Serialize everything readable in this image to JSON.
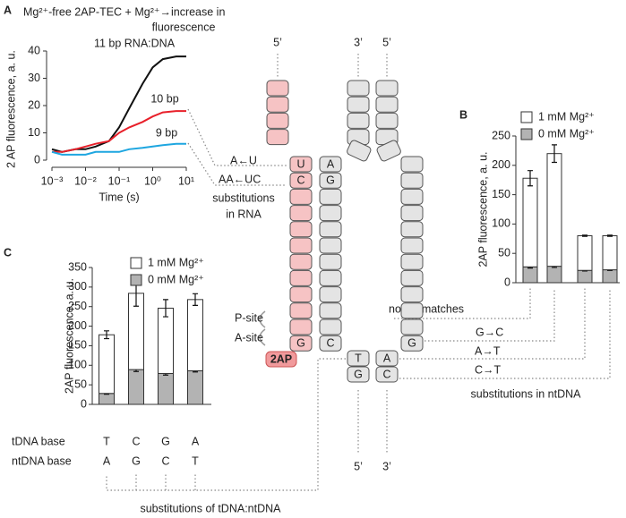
{
  "header": {
    "line1": "Mg²⁺-free 2AP-TEC + Mg²⁺→increase in",
    "line2": "fluorescence"
  },
  "panel_labels": [
    "A",
    "B",
    "C"
  ],
  "chart_data": [
    {
      "type": "line",
      "log_x": true,
      "x_label": "Time (s)",
      "y_label": "2 AP fluorescence, a. u.",
      "x": [
        0.001,
        0.002,
        0.005,
        0.01,
        0.02,
        0.05,
        0.1,
        0.2,
        0.5,
        1,
        2,
        5,
        10
      ],
      "xlim": [
        0.001,
        10
      ],
      "xticks": [
        {
          "value": 0.001,
          "label": "10⁻³"
        },
        {
          "value": 0.01,
          "label": "10⁻²"
        },
        {
          "value": 0.1,
          "label": "10⁻¹"
        },
        {
          "value": 1,
          "label": "10⁰"
        },
        {
          "value": 10,
          "label": "10¹"
        }
      ],
      "ylim": [
        0,
        40
      ],
      "yticks": [
        0,
        10,
        20,
        30,
        40
      ],
      "series": [
        {
          "name": "11 bp RNA:DNA",
          "color": "#111111",
          "values": [
            4,
            3,
            4,
            4,
            5,
            7,
            12,
            19,
            28,
            34,
            37,
            38,
            38
          ]
        },
        {
          "name": "10 bp",
          "color": "#e8202a",
          "values": [
            3,
            3,
            4,
            5,
            6,
            7,
            10,
            12,
            14,
            16,
            17.5,
            18,
            18
          ]
        },
        {
          "name": "9 bp",
          "color": "#1ea6e0",
          "values": [
            3,
            2,
            2,
            2,
            3,
            3,
            3,
            4,
            4.5,
            5,
            5.5,
            6,
            6
          ]
        }
      ]
    },
    {
      "type": "stacked_bar",
      "y_label": "2AP fluorescence, a. u.",
      "categories": [
        "no mismatches",
        "G→C",
        "A→T",
        "C→T"
      ],
      "caption": "substitutions in ntDNA",
      "ylim": [
        0,
        250
      ],
      "yticks": [
        0,
        50,
        100,
        150,
        200,
        250
      ],
      "series": [
        {
          "name": "0 mM Mg²⁺",
          "color": "#b3b3b3",
          "values": [
            27,
            28,
            21,
            22
          ],
          "errors": [
            2,
            2,
            1,
            1
          ]
        },
        {
          "name": "1 mM Mg²⁺",
          "color": "#ffffff",
          "values": [
            151,
            192,
            59,
            58
          ],
          "errors": [
            13,
            15,
            1,
            1
          ]
        }
      ]
    },
    {
      "type": "stacked_bar",
      "y_label": "2AP fluorescence, a. u.",
      "category_rows": [
        {
          "name": "tDNA base",
          "labels": [
            "T",
            "C",
            "G",
            "A"
          ]
        },
        {
          "name": "ntDNA base",
          "labels": [
            "A",
            "G",
            "C",
            "T"
          ]
        }
      ],
      "caption": "substitutions of tDNA:ntDNA",
      "ylim": [
        0,
        350
      ],
      "yticks": [
        0,
        50,
        100,
        150,
        200,
        250,
        300,
        350
      ],
      "series": [
        {
          "name": "0 mM Mg²⁺",
          "color": "#b3b3b3",
          "values": [
            28,
            89,
            79,
            86
          ],
          "errors": [
            2,
            5,
            4,
            3
          ]
        },
        {
          "name": "1 mM Mg²⁺",
          "color": "#ffffff",
          "values": [
            150,
            195,
            167,
            182
          ],
          "errors": [
            10,
            33,
            22,
            15
          ]
        }
      ]
    }
  ],
  "diagram": {
    "strand_ends_top": [
      "5’",
      "3’",
      "5’"
    ],
    "strand_ends_bottom": [
      "5’",
      "3’"
    ],
    "rna_bases": [
      "U",
      "C",
      "G"
    ],
    "tdna_bases": [
      "A",
      "G",
      "C",
      "T",
      "G"
    ],
    "ntdna_bases": [
      "G",
      "A",
      "C"
    ],
    "site_labels": [
      "P-site",
      "A-site"
    ],
    "probe": "2AP",
    "rna_substitutions": [
      "A←U",
      "AA←UC"
    ],
    "rna_substitutions_caption": [
      "substitutions",
      "in RNA"
    ]
  }
}
